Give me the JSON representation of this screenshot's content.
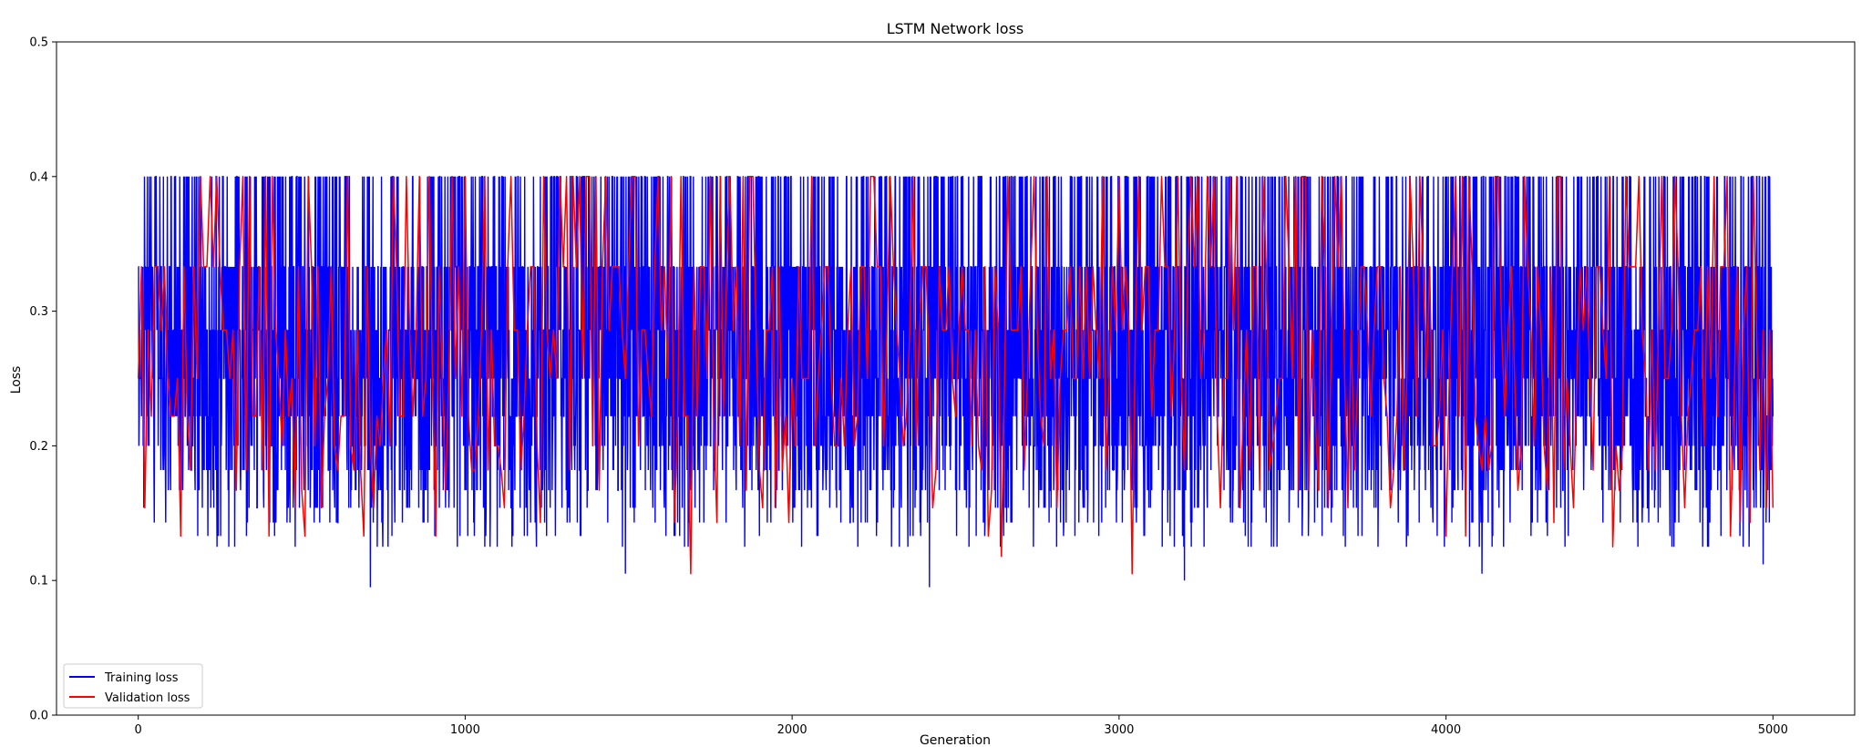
{
  "chart_data": {
    "type": "line",
    "title": "LSTM Network loss",
    "xlabel": "Generation",
    "ylabel": "Loss",
    "xlim": [
      -250,
      5250
    ],
    "ylim": [
      0,
      0.5
    ],
    "xticks": [
      0,
      1000,
      2000,
      3000,
      4000,
      5000
    ],
    "xtick_labels": [
      "0",
      "1000",
      "2000",
      "3000",
      "4000",
      "5000"
    ],
    "yticks": [
      0.0,
      0.1,
      0.2,
      0.3,
      0.4,
      0.5
    ],
    "ytick_labels": [
      "0.0",
      "0.1",
      "0.2",
      "0.3",
      "0.4",
      "0.5"
    ],
    "grid": false,
    "legend": "lower left",
    "series": [
      {
        "name": "Training loss",
        "color": "#0000ff",
        "x_range": [
          0,
          5000
        ],
        "x_step": 1,
        "levels": [
          0.4,
          0.333,
          0.286,
          0.25,
          0.222,
          0.2,
          0.182,
          0.167,
          0.154,
          0.143,
          0.133,
          0.125
        ],
        "minimum_points": [
          {
            "x": 710,
            "y": 0.095
          },
          {
            "x": 2420,
            "y": 0.095
          },
          {
            "x": 3200,
            "y": 0.1
          },
          {
            "x": 1490,
            "y": 0.105
          },
          {
            "x": 4110,
            "y": 0.105
          },
          {
            "x": 4970,
            "y": 0.112
          }
        ]
      },
      {
        "name": "Validation loss",
        "color": "#ff0000",
        "x_range": [
          0,
          5000
        ],
        "x_step": 10,
        "levels": [
          0.4,
          0.333,
          0.286,
          0.25,
          0.222,
          0.2,
          0.182,
          0.167,
          0.154,
          0.143,
          0.133
        ],
        "minimum_points": [
          {
            "x": 1690,
            "y": 0.105
          },
          {
            "x": 3040,
            "y": 0.105
          },
          {
            "x": 2640,
            "y": 0.118
          },
          {
            "x": 4510,
            "y": 0.125
          }
        ]
      }
    ]
  },
  "colors": {
    "training": "#0000ff",
    "validation": "#ff0000",
    "axes": "#000000",
    "legend_border": "#cccccc"
  }
}
